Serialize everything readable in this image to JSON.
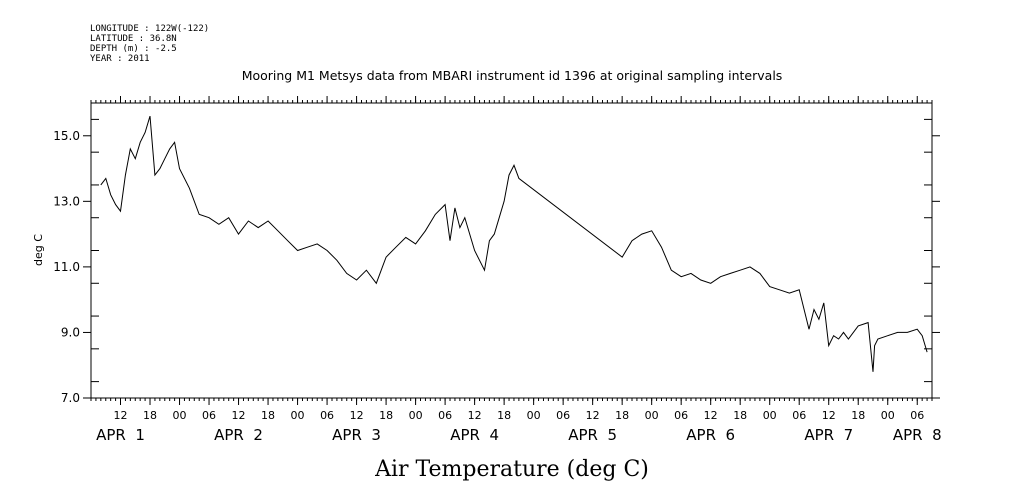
{
  "header": {
    "lines": [
      "LONGITUDE : 122W(-122)",
      "LATITUDE : 36.8N",
      "DEPTH (m) : -2.5",
      "YEAR : 2011"
    ]
  },
  "chart_data": {
    "type": "line",
    "title": "Mooring M1 Metsys data from MBARI instrument id 1396 at original sampling intervals",
    "xlabel": "Air Temperature (deg C)",
    "ylabel": "deg C",
    "ylim": [
      7.0,
      16.0
    ],
    "yticks": [
      7.0,
      9.0,
      11.0,
      13.0,
      15.0
    ],
    "ytick_labels": [
      "7.0",
      "9.0",
      "11.0",
      "13.0",
      "15.0"
    ],
    "xlim": [
      "2011-04-01T06:00",
      "2011-04-08T09:00"
    ],
    "hour_ticks": [
      {
        "t": "2011-04-01T12:00",
        "label": "12"
      },
      {
        "t": "2011-04-01T18:00",
        "label": "18"
      },
      {
        "t": "2011-04-02T00:00",
        "label": "00"
      },
      {
        "t": "2011-04-02T06:00",
        "label": "06"
      },
      {
        "t": "2011-04-02T12:00",
        "label": "12"
      },
      {
        "t": "2011-04-02T18:00",
        "label": "18"
      },
      {
        "t": "2011-04-03T00:00",
        "label": "00"
      },
      {
        "t": "2011-04-03T06:00",
        "label": "06"
      },
      {
        "t": "2011-04-03T12:00",
        "label": "12"
      },
      {
        "t": "2011-04-03T18:00",
        "label": "18"
      },
      {
        "t": "2011-04-04T00:00",
        "label": "00"
      },
      {
        "t": "2011-04-04T06:00",
        "label": "06"
      },
      {
        "t": "2011-04-04T12:00",
        "label": "12"
      },
      {
        "t": "2011-04-04T18:00",
        "label": "18"
      },
      {
        "t": "2011-04-05T00:00",
        "label": "00"
      },
      {
        "t": "2011-04-05T06:00",
        "label": "06"
      },
      {
        "t": "2011-04-05T12:00",
        "label": "12"
      },
      {
        "t": "2011-04-05T18:00",
        "label": "18"
      },
      {
        "t": "2011-04-06T00:00",
        "label": "00"
      },
      {
        "t": "2011-04-06T06:00",
        "label": "06"
      },
      {
        "t": "2011-04-06T12:00",
        "label": "12"
      },
      {
        "t": "2011-04-06T18:00",
        "label": "18"
      },
      {
        "t": "2011-04-07T00:00",
        "label": "00"
      },
      {
        "t": "2011-04-07T06:00",
        "label": "06"
      },
      {
        "t": "2011-04-07T12:00",
        "label": "12"
      },
      {
        "t": "2011-04-07T18:00",
        "label": "18"
      },
      {
        "t": "2011-04-08T00:00",
        "label": "00"
      },
      {
        "t": "2011-04-08T06:00",
        "label": "06"
      }
    ],
    "day_labels": [
      {
        "t": "2011-04-01T12:00",
        "label": "APR  1"
      },
      {
        "t": "2011-04-02T12:00",
        "label": "APR  2"
      },
      {
        "t": "2011-04-03T12:00",
        "label": "APR  3"
      },
      {
        "t": "2011-04-04T12:00",
        "label": "APR  4"
      },
      {
        "t": "2011-04-05T12:00",
        "label": "APR  5"
      },
      {
        "t": "2011-04-06T12:00",
        "label": "APR  6"
      },
      {
        "t": "2011-04-07T12:00",
        "label": "APR  7"
      },
      {
        "t": "2011-04-08T06:00",
        "label": "APR  8"
      }
    ],
    "grid": false,
    "legend": "none",
    "series": [
      {
        "x": [
          "2011-04-01T08:00",
          "2011-04-01T09:00",
          "2011-04-01T10:00",
          "2011-04-01T11:00",
          "2011-04-01T12:00",
          "2011-04-01T13:00",
          "2011-04-01T14:00",
          "2011-04-01T15:00",
          "2011-04-01T16:00",
          "2011-04-01T17:00",
          "2011-04-01T18:00",
          "2011-04-01T19:00",
          "2011-04-01T20:00",
          "2011-04-01T21:00",
          "2011-04-01T22:00",
          "2011-04-01T23:00",
          "2011-04-02T00:00",
          "2011-04-02T02:00",
          "2011-04-02T04:00",
          "2011-04-02T06:00",
          "2011-04-02T08:00",
          "2011-04-02T10:00",
          "2011-04-02T12:00",
          "2011-04-02T14:00",
          "2011-04-02T16:00",
          "2011-04-02T18:00",
          "2011-04-02T20:00",
          "2011-04-02T22:00",
          "2011-04-03T00:00",
          "2011-04-03T02:00",
          "2011-04-03T04:00",
          "2011-04-03T06:00",
          "2011-04-03T08:00",
          "2011-04-03T10:00",
          "2011-04-03T12:00",
          "2011-04-03T14:00",
          "2011-04-03T16:00",
          "2011-04-03T18:00",
          "2011-04-03T20:00",
          "2011-04-03T22:00",
          "2011-04-04T00:00",
          "2011-04-04T02:00",
          "2011-04-04T04:00",
          "2011-04-04T06:00",
          "2011-04-04T07:00",
          "2011-04-04T08:00",
          "2011-04-04T09:00",
          "2011-04-04T10:00",
          "2011-04-04T12:00",
          "2011-04-04T14:00",
          "2011-04-04T15:00",
          "2011-04-04T16:00",
          "2011-04-04T17:00",
          "2011-04-04T18:00",
          "2011-04-04T19:00",
          "2011-04-04T20:00",
          "2011-04-04T21:00",
          "2011-04-05T18:00",
          "2011-04-05T20:00",
          "2011-04-05T22:00",
          "2011-04-06T00:00",
          "2011-04-06T02:00",
          "2011-04-06T04:00",
          "2011-04-06T06:00",
          "2011-04-06T08:00",
          "2011-04-06T10:00",
          "2011-04-06T12:00",
          "2011-04-06T14:00",
          "2011-04-06T16:00",
          "2011-04-06T18:00",
          "2011-04-06T20:00",
          "2011-04-06T22:00",
          "2011-04-07T00:00",
          "2011-04-07T02:00",
          "2011-04-07T04:00",
          "2011-04-07T06:00",
          "2011-04-07T08:00",
          "2011-04-07T09:00",
          "2011-04-07T10:00",
          "2011-04-07T11:00",
          "2011-04-07T12:00",
          "2011-04-07T13:00",
          "2011-04-07T14:00",
          "2011-04-07T15:00",
          "2011-04-07T16:00",
          "2011-04-07T18:00",
          "2011-04-07T20:00",
          "2011-04-07T21:00",
          "2011-04-07T21:20",
          "2011-04-07T22:00",
          "2011-04-08T00:00",
          "2011-04-08T02:00",
          "2011-04-08T04:00",
          "2011-04-08T06:00",
          "2011-04-08T07:00",
          "2011-04-08T08:00"
        ],
        "y": [
          13.5,
          13.7,
          13.2,
          12.9,
          12.7,
          13.8,
          14.6,
          14.3,
          14.8,
          15.1,
          15.6,
          13.8,
          14.0,
          14.3,
          14.6,
          14.8,
          14.0,
          13.4,
          12.6,
          12.5,
          12.3,
          12.5,
          12.0,
          12.4,
          12.2,
          12.4,
          12.1,
          11.8,
          11.5,
          11.6,
          11.7,
          11.5,
          11.2,
          10.8,
          10.6,
          10.9,
          10.5,
          11.3,
          11.6,
          11.9,
          11.7,
          12.1,
          12.6,
          12.9,
          11.8,
          12.8,
          12.2,
          12.5,
          11.5,
          10.9,
          11.8,
          12.0,
          12.5,
          13.0,
          13.8,
          14.1,
          13.7,
          11.3,
          11.8,
          12.0,
          12.1,
          11.6,
          10.9,
          10.7,
          10.8,
          10.6,
          10.5,
          10.7,
          10.8,
          10.9,
          11.0,
          10.8,
          10.4,
          10.3,
          10.2,
          10.3,
          9.1,
          9.7,
          9.4,
          9.9,
          8.6,
          8.9,
          8.8,
          9.0,
          8.8,
          9.2,
          9.3,
          7.8,
          8.6,
          8.8,
          8.9,
          9.0,
          9.0,
          9.1,
          8.9,
          8.4
        ]
      }
    ]
  }
}
